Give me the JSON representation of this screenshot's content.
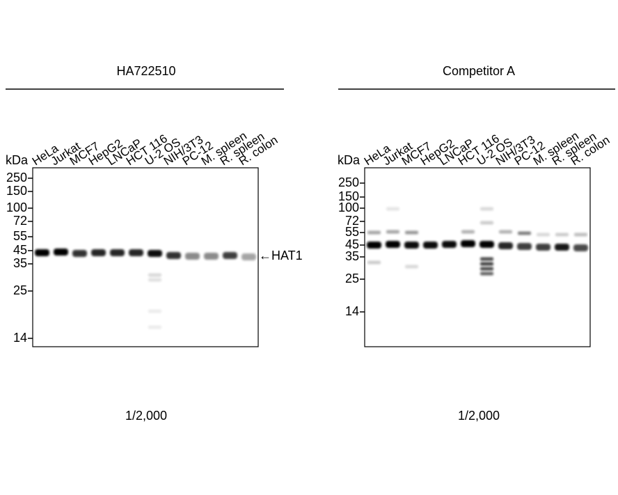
{
  "panels": [
    {
      "title": "HA722510",
      "unit": "kDa",
      "lanes": [
        "HeLa",
        "Jurkat",
        "MCF7",
        "HepG2",
        "LNCaP",
        "HCT 116",
        "U-2 OS",
        "NIH/3T3",
        "PC-12",
        "M. spleen",
        "R. spleen",
        "R. colon"
      ],
      "markers": [
        "250",
        "150",
        "100",
        "72",
        "55",
        "45",
        "35",
        "25",
        "14"
      ],
      "target": "←HAT1",
      "dilution": "1/2,000"
    },
    {
      "title": "Competitor A",
      "unit": "kDa",
      "lanes": [
        "HeLa",
        "Jurkat",
        "MCF7",
        "HepG2",
        "LNCaP",
        "HCT 116",
        "U-2 OS",
        "NIH/3T3",
        "PC-12",
        "M. spleen",
        "R. spleen",
        "R. colon"
      ],
      "markers": [
        "250",
        "150",
        "100",
        "72",
        "55",
        "45",
        "35",
        "25",
        "14"
      ],
      "dilution": "1/2,000"
    }
  ]
}
